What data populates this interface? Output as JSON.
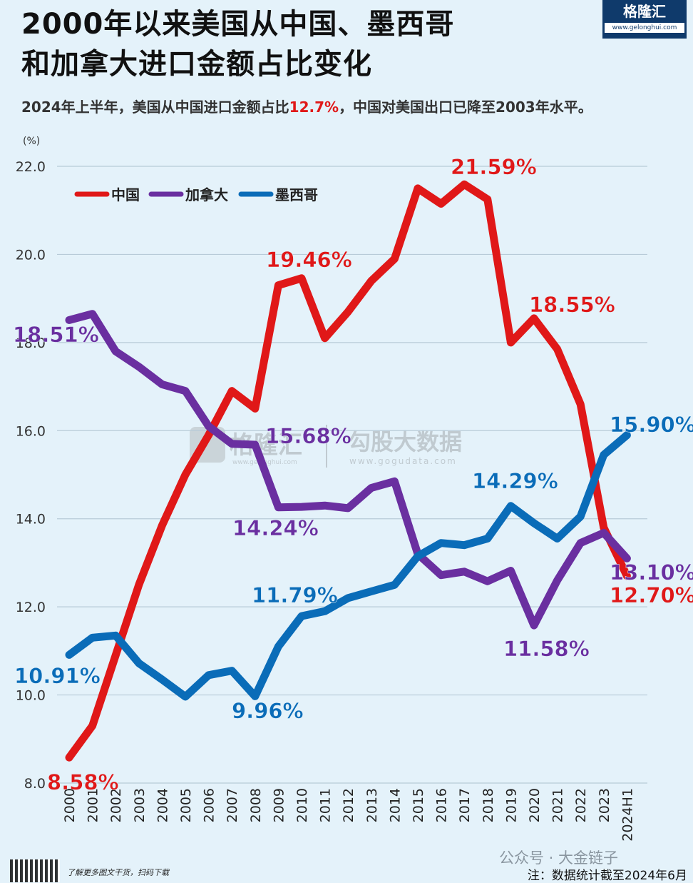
{
  "header": {
    "title_line1": "2000年以来美国从中国、墨西哥",
    "title_line2": "和加拿大进口金额占比变化",
    "subtitle_before": "2024年上半年，美国从中国进口金额占比",
    "subtitle_highlight": "12.7%",
    "subtitle_after": "，中国对美国出口已降至2003年水平。"
  },
  "logo": {
    "name": "格隆汇",
    "url": "www.gelonghui.com"
  },
  "watermark": {
    "brand1": "格隆汇",
    "brand1_url": "www.gelonghui.com",
    "brand2": "勾股大数据",
    "brand2_url": "www.gogudata.com"
  },
  "footer": {
    "qr_text": "了解更多图文干货，扫码下载",
    "wechat": "公众号 · 大金链子",
    "note": "注：数据统计截至2024年6月"
  },
  "colors": {
    "china": "#e01818",
    "canada": "#6a2fa0",
    "mexico": "#0a6cb8",
    "background": "#e4f2fa"
  },
  "chart_data": {
    "type": "line",
    "unit_label": "(%)",
    "x": [
      "2000",
      "2001",
      "2002",
      "2003",
      "2004",
      "2005",
      "2006",
      "2007",
      "2008",
      "2009",
      "2010",
      "2011",
      "2012",
      "2013",
      "2014",
      "2015",
      "2016",
      "2017",
      "2018",
      "2019",
      "2020",
      "2021",
      "2022",
      "2023",
      "2024H1"
    ],
    "ylim": [
      8.0,
      22.0
    ],
    "yticks": [
      "8.0",
      "10.0",
      "12.0",
      "14.0",
      "16.0",
      "18.0",
      "20.0",
      "22.0"
    ],
    "grid": true,
    "legend_position": "top-left",
    "series": [
      {
        "name": "中国",
        "color": "#e01818",
        "values": [
          8.58,
          9.3,
          10.9,
          12.5,
          13.85,
          15.0,
          15.9,
          16.9,
          16.5,
          19.3,
          19.46,
          18.1,
          18.7,
          19.4,
          19.9,
          21.5,
          21.15,
          21.59,
          21.25,
          18.0,
          18.55,
          17.85,
          16.6,
          13.8,
          12.7
        ]
      },
      {
        "name": "加拿大",
        "color": "#6a2fa0",
        "values": [
          18.51,
          18.65,
          17.8,
          17.45,
          17.05,
          16.9,
          16.1,
          15.7,
          15.68,
          14.26,
          14.27,
          14.3,
          14.24,
          14.7,
          14.85,
          13.2,
          12.72,
          12.8,
          12.58,
          12.82,
          11.58,
          12.6,
          13.45,
          13.68,
          13.1
        ]
      },
      {
        "name": "墨西哥",
        "color": "#0a6cb8",
        "values": [
          10.91,
          11.3,
          11.35,
          10.72,
          10.35,
          9.96,
          10.45,
          10.55,
          9.97,
          11.1,
          11.79,
          11.9,
          12.2,
          12.35,
          12.5,
          13.15,
          13.45,
          13.4,
          13.55,
          14.29,
          13.9,
          13.55,
          14.05,
          15.45,
          15.9
        ]
      }
    ],
    "annotations": [
      {
        "series": "中国",
        "x": "2000",
        "label": "8.58%"
      },
      {
        "series": "中国",
        "x": "2010",
        "label": "19.46%"
      },
      {
        "series": "中国",
        "x": "2017",
        "label": "21.59%"
      },
      {
        "series": "中国",
        "x": "2020",
        "label": "18.55%"
      },
      {
        "series": "中国",
        "x": "2024H1",
        "label": "12.70%"
      },
      {
        "series": "加拿大",
        "x": "2000",
        "label": "18.51%"
      },
      {
        "series": "加拿大",
        "x": "2008",
        "label": "15.68%"
      },
      {
        "series": "加拿大",
        "x": "2012",
        "label": "14.24%"
      },
      {
        "series": "加拿大",
        "x": "2020",
        "label": "11.58%"
      },
      {
        "series": "加拿大",
        "x": "2024H1",
        "label": "13.10%"
      },
      {
        "series": "墨西哥",
        "x": "2000",
        "label": "10.91%"
      },
      {
        "series": "墨西哥",
        "x": "2005",
        "label": "9.96%"
      },
      {
        "series": "墨西哥",
        "x": "2010",
        "label": "11.79%"
      },
      {
        "series": "墨西哥",
        "x": "2019",
        "label": "14.29%"
      },
      {
        "series": "墨西哥",
        "x": "2024H1",
        "label": "15.90%"
      }
    ]
  }
}
